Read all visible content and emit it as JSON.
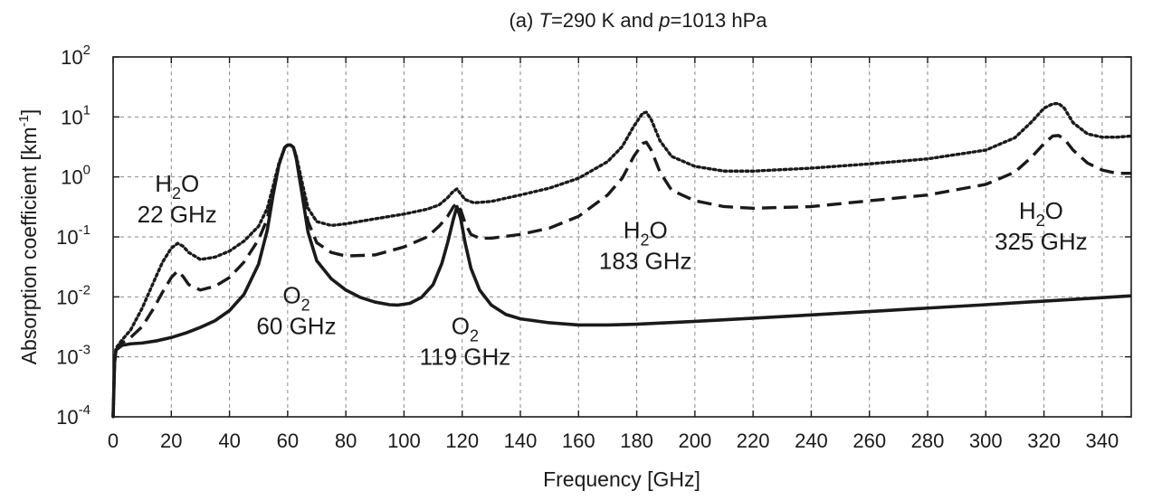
{
  "chart_data": {
    "type": "line",
    "title_prefix": "(a) ",
    "title_T": "T",
    "title_mid": "=290 K and ",
    "title_p": "p",
    "title_suffix": "=1013 hPa",
    "xlabel": "Frequency [GHz]",
    "ylabel_main": "Absorption coefficient [km",
    "ylabel_sup": "-1",
    "ylabel_end": "]",
    "xlim": [
      0,
      350
    ],
    "ylim": [
      0.0001,
      100
    ],
    "yscale": "log",
    "grid": true,
    "x_ticks": [
      "0",
      "20",
      "40",
      "60",
      "80",
      "100",
      "120",
      "140",
      "160",
      "180",
      "200",
      "220",
      "240",
      "260",
      "280",
      "300",
      "320",
      "340"
    ],
    "y_ticks": [
      {
        "base": "10",
        "exp": "-4",
        "value": 0.0001
      },
      {
        "base": "10",
        "exp": "-3",
        "value": 0.001
      },
      {
        "base": "10",
        "exp": "-2",
        "value": 0.01
      },
      {
        "base": "10",
        "exp": "-1",
        "value": 0.1
      },
      {
        "base": "10",
        "exp": "0",
        "value": 1
      },
      {
        "base": "10",
        "exp": "1",
        "value": 10
      },
      {
        "base": "10",
        "exp": "2",
        "value": 100
      }
    ],
    "series": [
      {
        "style": "solid",
        "color": "#1a1a1a",
        "points": [
          [
            0,
            0.0001
          ],
          [
            0.5,
            0.0008
          ],
          [
            1,
            0.0013
          ],
          [
            3,
            0.00155
          ],
          [
            6,
            0.00165
          ],
          [
            10,
            0.0017
          ],
          [
            15,
            0.00185
          ],
          [
            20,
            0.0021
          ],
          [
            25,
            0.0025
          ],
          [
            30,
            0.0031
          ],
          [
            35,
            0.004
          ],
          [
            40,
            0.0059
          ],
          [
            45,
            0.011
          ],
          [
            50,
            0.035
          ],
          [
            53,
            0.13
          ],
          [
            55,
            0.5
          ],
          [
            57,
            1.6
          ],
          [
            59,
            3.1
          ],
          [
            60,
            3.4
          ],
          [
            61,
            3.4
          ],
          [
            62,
            3.1
          ],
          [
            63,
            2.0
          ],
          [
            65,
            0.5
          ],
          [
            67,
            0.12
          ],
          [
            70,
            0.04
          ],
          [
            75,
            0.02
          ],
          [
            80,
            0.013
          ],
          [
            85,
            0.0098
          ],
          [
            90,
            0.0082
          ],
          [
            95,
            0.0074
          ],
          [
            98,
            0.0073
          ],
          [
            102,
            0.0078
          ],
          [
            106,
            0.0098
          ],
          [
            110,
            0.016
          ],
          [
            113,
            0.036
          ],
          [
            115,
            0.08
          ],
          [
            117,
            0.2
          ],
          [
            118.2,
            0.32
          ],
          [
            119.5,
            0.2
          ],
          [
            121,
            0.08
          ],
          [
            123,
            0.03
          ],
          [
            126,
            0.013
          ],
          [
            130,
            0.0073
          ],
          [
            135,
            0.0051
          ],
          [
            140,
            0.0043
          ],
          [
            150,
            0.0037
          ],
          [
            160,
            0.0034
          ],
          [
            170,
            0.0034
          ],
          [
            180,
            0.0035
          ],
          [
            200,
            0.0039
          ],
          [
            220,
            0.0044
          ],
          [
            240,
            0.005
          ],
          [
            260,
            0.0057
          ],
          [
            280,
            0.0065
          ],
          [
            300,
            0.0074
          ],
          [
            320,
            0.0085
          ],
          [
            340,
            0.0097
          ],
          [
            350,
            0.0104
          ]
        ]
      },
      {
        "style": "dashed",
        "color": "#1a1a1a",
        "points": [
          [
            0,
            0.0001
          ],
          [
            0.5,
            0.0008
          ],
          [
            1,
            0.0013
          ],
          [
            3,
            0.0017
          ],
          [
            6,
            0.0021
          ],
          [
            10,
            0.0032
          ],
          [
            14,
            0.0065
          ],
          [
            17,
            0.012
          ],
          [
            20,
            0.021
          ],
          [
            22.2,
            0.027
          ],
          [
            24,
            0.022
          ],
          [
            26,
            0.016
          ],
          [
            30,
            0.013
          ],
          [
            35,
            0.015
          ],
          [
            40,
            0.021
          ],
          [
            45,
            0.038
          ],
          [
            50,
            0.09
          ],
          [
            53,
            0.2
          ],
          [
            55,
            0.55
          ],
          [
            57,
            1.6
          ],
          [
            59,
            3.1
          ],
          [
            60,
            3.4
          ],
          [
            61,
            3.4
          ],
          [
            62,
            3.1
          ],
          [
            63,
            2.1
          ],
          [
            65,
            0.6
          ],
          [
            67,
            0.18
          ],
          [
            70,
            0.08
          ],
          [
            75,
            0.055
          ],
          [
            80,
            0.048
          ],
          [
            90,
            0.05
          ],
          [
            100,
            0.068
          ],
          [
            108,
            0.1
          ],
          [
            112,
            0.15
          ],
          [
            115,
            0.22
          ],
          [
            117,
            0.32
          ],
          [
            118.2,
            0.36
          ],
          [
            119.5,
            0.28
          ],
          [
            121,
            0.17
          ],
          [
            123,
            0.11
          ],
          [
            126,
            0.095
          ],
          [
            130,
            0.095
          ],
          [
            140,
            0.11
          ],
          [
            150,
            0.14
          ],
          [
            160,
            0.22
          ],
          [
            170,
            0.5
          ],
          [
            175,
            0.95
          ],
          [
            179,
            2.2
          ],
          [
            182,
            3.6
          ],
          [
            183.3,
            3.8
          ],
          [
            185,
            2.8
          ],
          [
            188,
            1.2
          ],
          [
            192,
            0.6
          ],
          [
            200,
            0.4
          ],
          [
            210,
            0.32
          ],
          [
            220,
            0.3
          ],
          [
            240,
            0.32
          ],
          [
            260,
            0.4
          ],
          [
            280,
            0.5
          ],
          [
            300,
            0.75
          ],
          [
            310,
            1.2
          ],
          [
            316,
            2.2
          ],
          [
            320,
            3.6
          ],
          [
            323,
            4.8
          ],
          [
            325,
            4.9
          ],
          [
            327,
            4.3
          ],
          [
            330,
            2.8
          ],
          [
            335,
            1.7
          ],
          [
            340,
            1.3
          ],
          [
            345,
            1.15
          ],
          [
            350,
            1.15
          ]
        ]
      },
      {
        "style": "dotted",
        "color": "#1a1a1a",
        "points": [
          [
            0,
            0.0001
          ],
          [
            0.5,
            0.0009
          ],
          [
            1,
            0.0014
          ],
          [
            3,
            0.0019
          ],
          [
            6,
            0.0028
          ],
          [
            10,
            0.0065
          ],
          [
            14,
            0.018
          ],
          [
            17,
            0.038
          ],
          [
            20,
            0.065
          ],
          [
            22.2,
            0.078
          ],
          [
            24,
            0.07
          ],
          [
            26,
            0.055
          ],
          [
            30,
            0.042
          ],
          [
            35,
            0.046
          ],
          [
            40,
            0.058
          ],
          [
            45,
            0.085
          ],
          [
            50,
            0.15
          ],
          [
            53,
            0.3
          ],
          [
            55,
            0.7
          ],
          [
            57,
            1.7
          ],
          [
            59,
            3.1
          ],
          [
            60,
            3.4
          ],
          [
            61,
            3.4
          ],
          [
            62,
            3.1
          ],
          [
            63,
            2.2
          ],
          [
            65,
            0.8
          ],
          [
            67,
            0.3
          ],
          [
            70,
            0.18
          ],
          [
            75,
            0.155
          ],
          [
            80,
            0.165
          ],
          [
            90,
            0.2
          ],
          [
            100,
            0.24
          ],
          [
            108,
            0.29
          ],
          [
            112,
            0.34
          ],
          [
            115,
            0.45
          ],
          [
            117,
            0.58
          ],
          [
            118.2,
            0.63
          ],
          [
            119.5,
            0.52
          ],
          [
            121,
            0.42
          ],
          [
            124,
            0.37
          ],
          [
            130,
            0.39
          ],
          [
            140,
            0.5
          ],
          [
            150,
            0.65
          ],
          [
            160,
            0.95
          ],
          [
            170,
            1.8
          ],
          [
            175,
            3.2
          ],
          [
            179,
            7.0
          ],
          [
            182,
            11.5
          ],
          [
            183.3,
            12.0
          ],
          [
            185,
            9.0
          ],
          [
            188,
            4.0
          ],
          [
            192,
            2.2
          ],
          [
            200,
            1.5
          ],
          [
            210,
            1.25
          ],
          [
            220,
            1.25
          ],
          [
            240,
            1.4
          ],
          [
            260,
            1.65
          ],
          [
            280,
            2.0
          ],
          [
            300,
            2.8
          ],
          [
            310,
            4.5
          ],
          [
            316,
            8.5
          ],
          [
            320,
            14.0
          ],
          [
            323,
            16.5
          ],
          [
            325,
            16.8
          ],
          [
            327,
            14.0
          ],
          [
            330,
            8.0
          ],
          [
            335,
            5.2
          ],
          [
            340,
            4.6
          ],
          [
            345,
            4.6
          ],
          [
            350,
            4.8
          ]
        ]
      }
    ],
    "annotations": [
      {
        "line1_main": "H",
        "line1_sub": "2",
        "line1_end": "O",
        "line2": "22 GHz",
        "x": 22,
        "y": 0.57
      },
      {
        "line1_main": "O",
        "line1_sub": "2",
        "line1_end": "",
        "line2": "60 GHz",
        "x": 63,
        "y": 0.0078
      },
      {
        "line1_main": "O",
        "line1_sub": "2",
        "line1_end": "",
        "line2": "119 GHz",
        "x": 121,
        "y": 0.0024
      },
      {
        "line1_main": "H",
        "line1_sub": "2",
        "line1_end": "O",
        "line2": "183 GHz",
        "x": 183,
        "y": 0.095
      },
      {
        "line1_main": "H",
        "line1_sub": "2",
        "line1_end": "O",
        "line2": "325 GHz",
        "x": 319,
        "y": 0.2
      }
    ]
  }
}
